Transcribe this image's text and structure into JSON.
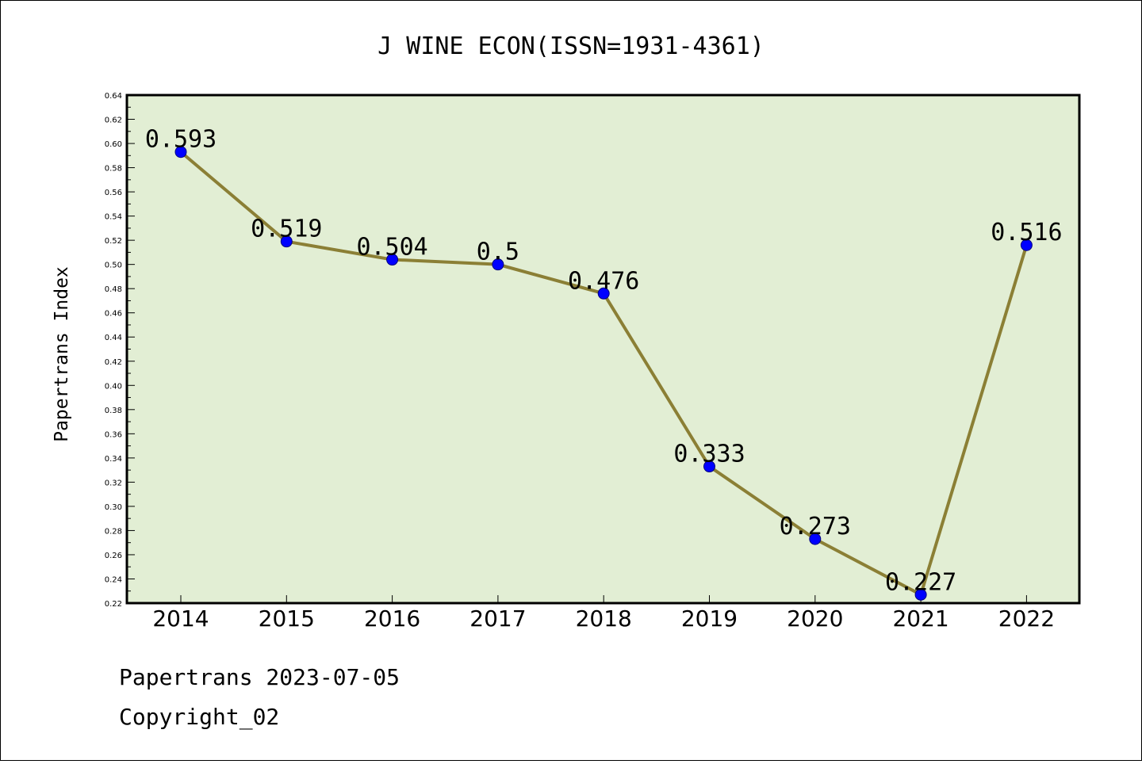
{
  "title": "J WINE ECON(ISSN=1931-4361)",
  "chart_data": {
    "type": "line",
    "title": "J WINE ECON(ISSN=1931-4361)",
    "xlabel": "",
    "ylabel": "Papertrans Index",
    "categories": [
      "2014",
      "2015",
      "2016",
      "2017",
      "2018",
      "2019",
      "2020",
      "2021",
      "2022"
    ],
    "series": [
      {
        "values": [
          0.593,
          0.519,
          0.504,
          0.5,
          0.476,
          0.333,
          0.273,
          0.227,
          0.516
        ],
        "data_labels": [
          "0.593",
          "0.519",
          "0.504",
          "0.5",
          "0.476",
          "0.333",
          "0.273",
          "0.227",
          "0.516"
        ]
      }
    ],
    "ylim": [
      0.22,
      0.64
    ],
    "yticks": [
      "0.22",
      "0.24",
      "0.26",
      "0.28",
      "0.30",
      "0.32",
      "0.34",
      "0.36",
      "0.38",
      "0.40",
      "0.42",
      "0.44",
      "0.46",
      "0.48",
      "0.50",
      "0.52",
      "0.54",
      "0.56",
      "0.58",
      "0.60",
      "0.62",
      "0.64"
    ],
    "grid": false,
    "colors": {
      "plot_background": "#e2eed4",
      "line": "#8b7f35",
      "marker": "#0000ff",
      "marker_edge": "#000080"
    }
  },
  "footer": {
    "date_line": "Papertrans 2023-07-05",
    "copyright": "Copyright_02"
  }
}
